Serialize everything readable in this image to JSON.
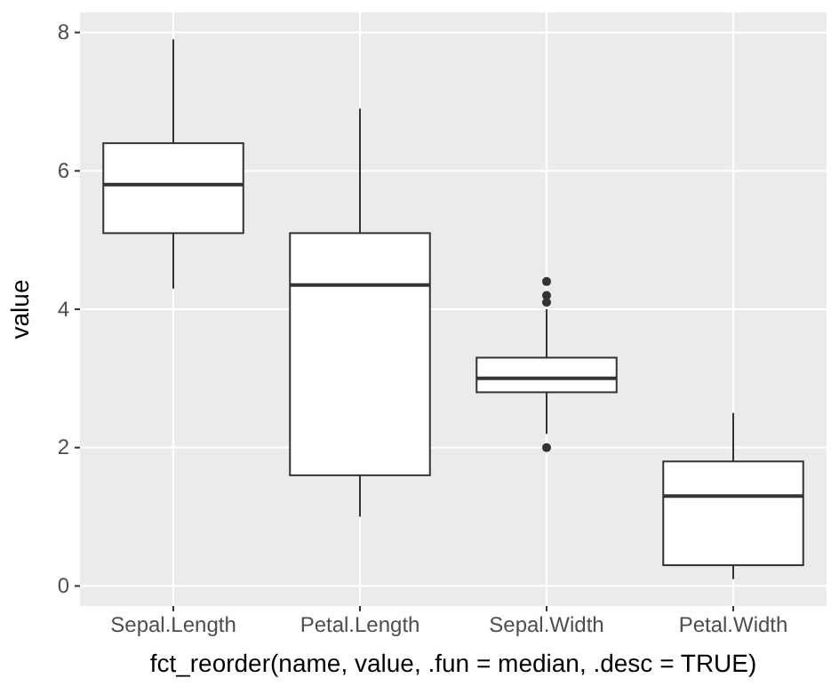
{
  "chart_data": {
    "type": "box",
    "xlabel": "fct_reorder(name, value, .fun = median, .desc = TRUE)",
    "ylabel": "value",
    "categories": [
      "Sepal.Length",
      "Petal.Length",
      "Sepal.Width",
      "Petal.Width"
    ],
    "boxes": [
      {
        "low": 4.3,
        "q1": 5.1,
        "median": 5.8,
        "q3": 6.4,
        "high": 7.9
      },
      {
        "low": 1.0,
        "q1": 1.6,
        "median": 4.35,
        "q3": 5.1,
        "high": 6.9
      },
      {
        "low": 2.2,
        "q1": 2.8,
        "median": 3.0,
        "q3": 3.3,
        "high": 4.0,
        "outliers": [
          4.4,
          4.1,
          4.2,
          2.0
        ]
      },
      {
        "low": 0.1,
        "q1": 0.3,
        "median": 1.3,
        "q3": 1.8,
        "high": 2.5
      }
    ],
    "ylim": [
      -0.29,
      8.29
    ],
    "yticks": [
      0,
      2,
      4,
      6,
      8
    ],
    "grid": true
  }
}
